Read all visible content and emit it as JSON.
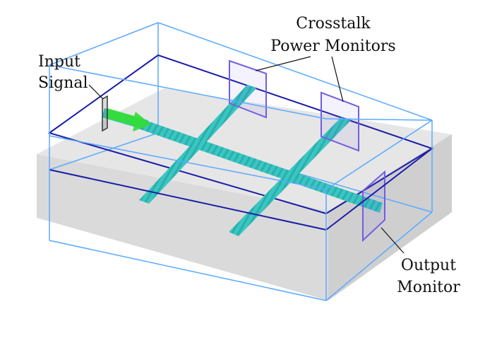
{
  "labels": {
    "input": [
      "Input",
      "Signal"
    ],
    "crosstalk": [
      "Crosstalk",
      "Power Monitors"
    ],
    "output": [
      "Output",
      "Monitor"
    ]
  },
  "colors": {
    "substrate_top": "#e6e6e6",
    "substrate_side": "#d6d6d6",
    "box_outer": "#5aa9ff",
    "box_inner": "#1c1ca8",
    "waveguide": "#3ac6c2",
    "monitor": "#6f5fe0",
    "source_arrow": "#33dd33"
  }
}
